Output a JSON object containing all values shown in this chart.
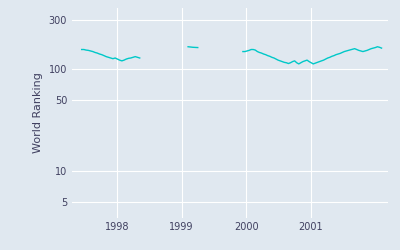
{
  "ylabel": "World Ranking",
  "line_color": "#00c8c8",
  "background_color": "#e0e8f0",
  "segments": [
    {
      "x_start": 1997.45,
      "x_end": 1998.35,
      "y_values": [
        155,
        155,
        153,
        152,
        150,
        148,
        145,
        143,
        140,
        138,
        135,
        132,
        130,
        128,
        126,
        128,
        125,
        122,
        120,
        122,
        125,
        127,
        128,
        130,
        132,
        130,
        128
      ]
    },
    {
      "x_start": 1999.1,
      "x_end": 1999.25,
      "y_values": [
        165,
        163,
        162
      ]
    },
    {
      "x_start": 1999.95,
      "x_end": 2002.1,
      "y_values": [
        148,
        148,
        150,
        152,
        155,
        155,
        153,
        148,
        145,
        143,
        140,
        138,
        135,
        133,
        130,
        128,
        125,
        122,
        120,
        118,
        116,
        115,
        113,
        115,
        118,
        120,
        115,
        112,
        115,
        118,
        120,
        122,
        118,
        115,
        112,
        114,
        116,
        118,
        120,
        122,
        125,
        128,
        130,
        133,
        135,
        138,
        140,
        142,
        145,
        148,
        150,
        152,
        154,
        156,
        158,
        155,
        152,
        150,
        148,
        150,
        152,
        155,
        158,
        160,
        162,
        165,
        163,
        160
      ]
    }
  ],
  "yticks": [
    5,
    10,
    50,
    100,
    300
  ],
  "ytick_labels": [
    "5",
    "10",
    "50",
    "100",
    "300"
  ],
  "xticks": [
    1998,
    1999,
    2000,
    2001
  ],
  "xlim": [
    1997.3,
    2002.2
  ],
  "ylim_log": [
    3.5,
    400
  ]
}
